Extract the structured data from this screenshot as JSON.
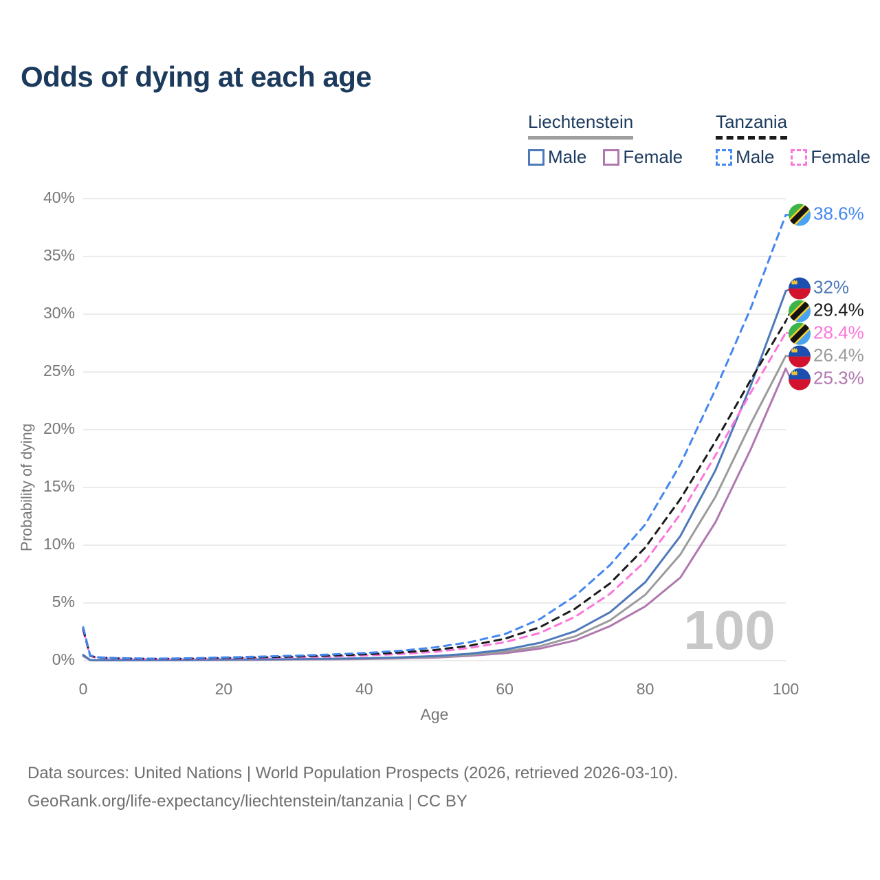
{
  "title": "Odds of dying at each age",
  "legend": {
    "groups": [
      {
        "label": "Liechtenstein",
        "line_style": "solid",
        "line_color": "#9e9e9e",
        "items": [
          {
            "label": "Male",
            "color": "#4e79b9"
          },
          {
            "label": "Female",
            "color": "#b077af"
          }
        ]
      },
      {
        "label": "Tanzania",
        "line_style": "dashed",
        "line_color": "#1b1b1b",
        "items": [
          {
            "label": "Male",
            "color": "#4487ef"
          },
          {
            "label": "Female",
            "color": "#fb76da"
          }
        ]
      }
    ]
  },
  "watermark": "100",
  "footer": {
    "line1": "Data sources: United Nations | World Population Prospects (2026, retrieved 2026-03-10).",
    "line2": "GeoRank.org/life-expectancy/liechtenstein/tanzania | CC BY"
  },
  "colors": {
    "title": "#1b3a5c",
    "axis_text": "#777777",
    "gridline": "#ebebeb",
    "watermark": "#c8c8c8",
    "footer": "#6f6f6f",
    "tanzania_green": "#3cb44b",
    "tanzania_blue": "#4aa3f0",
    "tanzania_yellow": "#f7d02d",
    "tanzania_black": "#141414",
    "liechtenstein_blue": "#1d4fb0",
    "liechtenstein_red": "#d2132e",
    "liechtenstein_gold": "#eec437"
  },
  "chart_data": {
    "type": "line",
    "title": "Odds of dying at each age",
    "xlabel": "Age",
    "ylabel": "Probability of dying",
    "xlim": [
      0,
      100
    ],
    "ylim": [
      0,
      40
    ],
    "x_ticks": [
      0,
      20,
      40,
      60,
      80,
      100
    ],
    "y_ticks": [
      0,
      5,
      10,
      15,
      20,
      25,
      30,
      35,
      40
    ],
    "y_tick_suffix": "%",
    "grid": "horizontal",
    "legend_position": "top-right",
    "ages": [
      0,
      1,
      2,
      5,
      10,
      15,
      20,
      25,
      30,
      35,
      40,
      45,
      50,
      55,
      60,
      65,
      70,
      75,
      80,
      85,
      90,
      95,
      100
    ],
    "series": [
      {
        "name": "Liechtenstein Female",
        "country": "liechtenstein",
        "sex": "female",
        "color": "#b077af",
        "dashed": false,
        "end_label": "25.3%",
        "values": [
          0.4,
          0.04,
          0.03,
          0.03,
          0.04,
          0.05,
          0.06,
          0.08,
          0.1,
          0.12,
          0.15,
          0.19,
          0.27,
          0.42,
          0.65,
          1.05,
          1.75,
          3.0,
          4.7,
          7.2,
          12.0,
          18.3,
          25.3
        ]
      },
      {
        "name": "Liechtenstein Both sexes",
        "country": "liechtenstein",
        "sex": "both",
        "color": "#9b9b9b",
        "dashed": false,
        "end_label": "26.4%",
        "values": [
          0.45,
          0.05,
          0.04,
          0.04,
          0.05,
          0.06,
          0.08,
          0.1,
          0.12,
          0.14,
          0.18,
          0.23,
          0.33,
          0.5,
          0.78,
          1.25,
          2.1,
          3.5,
          5.7,
          9.2,
          14.2,
          20.5,
          26.4
        ]
      },
      {
        "name": "Liechtenstein Male",
        "country": "liechtenstein",
        "sex": "male",
        "color": "#4e79b9",
        "dashed": false,
        "end_label": "32%",
        "values": [
          0.5,
          0.06,
          0.05,
          0.05,
          0.06,
          0.08,
          0.1,
          0.12,
          0.14,
          0.17,
          0.21,
          0.28,
          0.4,
          0.6,
          0.95,
          1.55,
          2.55,
          4.2,
          6.8,
          10.8,
          16.5,
          23.8,
          32.0
        ]
      },
      {
        "name": "Tanzania Female",
        "country": "tanzania",
        "sex": "female",
        "color": "#fb76da",
        "dashed": true,
        "end_label": "28.4%",
        "values": [
          2.6,
          0.4,
          0.26,
          0.18,
          0.14,
          0.15,
          0.19,
          0.24,
          0.29,
          0.36,
          0.45,
          0.57,
          0.76,
          1.1,
          1.6,
          2.4,
          3.8,
          5.8,
          8.6,
          12.7,
          17.8,
          23.2,
          28.4
        ]
      },
      {
        "name": "Tanzania Both sexes",
        "country": "tanzania",
        "sex": "both",
        "color": "#1b1b1b",
        "dashed": true,
        "end_label": "29.4%",
        "values": [
          2.75,
          0.42,
          0.28,
          0.2,
          0.16,
          0.18,
          0.23,
          0.29,
          0.35,
          0.44,
          0.55,
          0.7,
          0.92,
          1.3,
          1.9,
          2.9,
          4.5,
          6.7,
          9.8,
          14.0,
          19.0,
          24.3,
          29.4
        ]
      },
      {
        "name": "Tanzania Male",
        "country": "tanzania",
        "sex": "male",
        "color": "#4487ef",
        "dashed": true,
        "end_label": "38.6%",
        "values": [
          2.9,
          0.45,
          0.3,
          0.22,
          0.18,
          0.21,
          0.28,
          0.35,
          0.43,
          0.53,
          0.66,
          0.85,
          1.15,
          1.6,
          2.3,
          3.6,
          5.6,
          8.3,
          11.8,
          17.0,
          23.5,
          30.5,
          38.6
        ]
      }
    ]
  }
}
